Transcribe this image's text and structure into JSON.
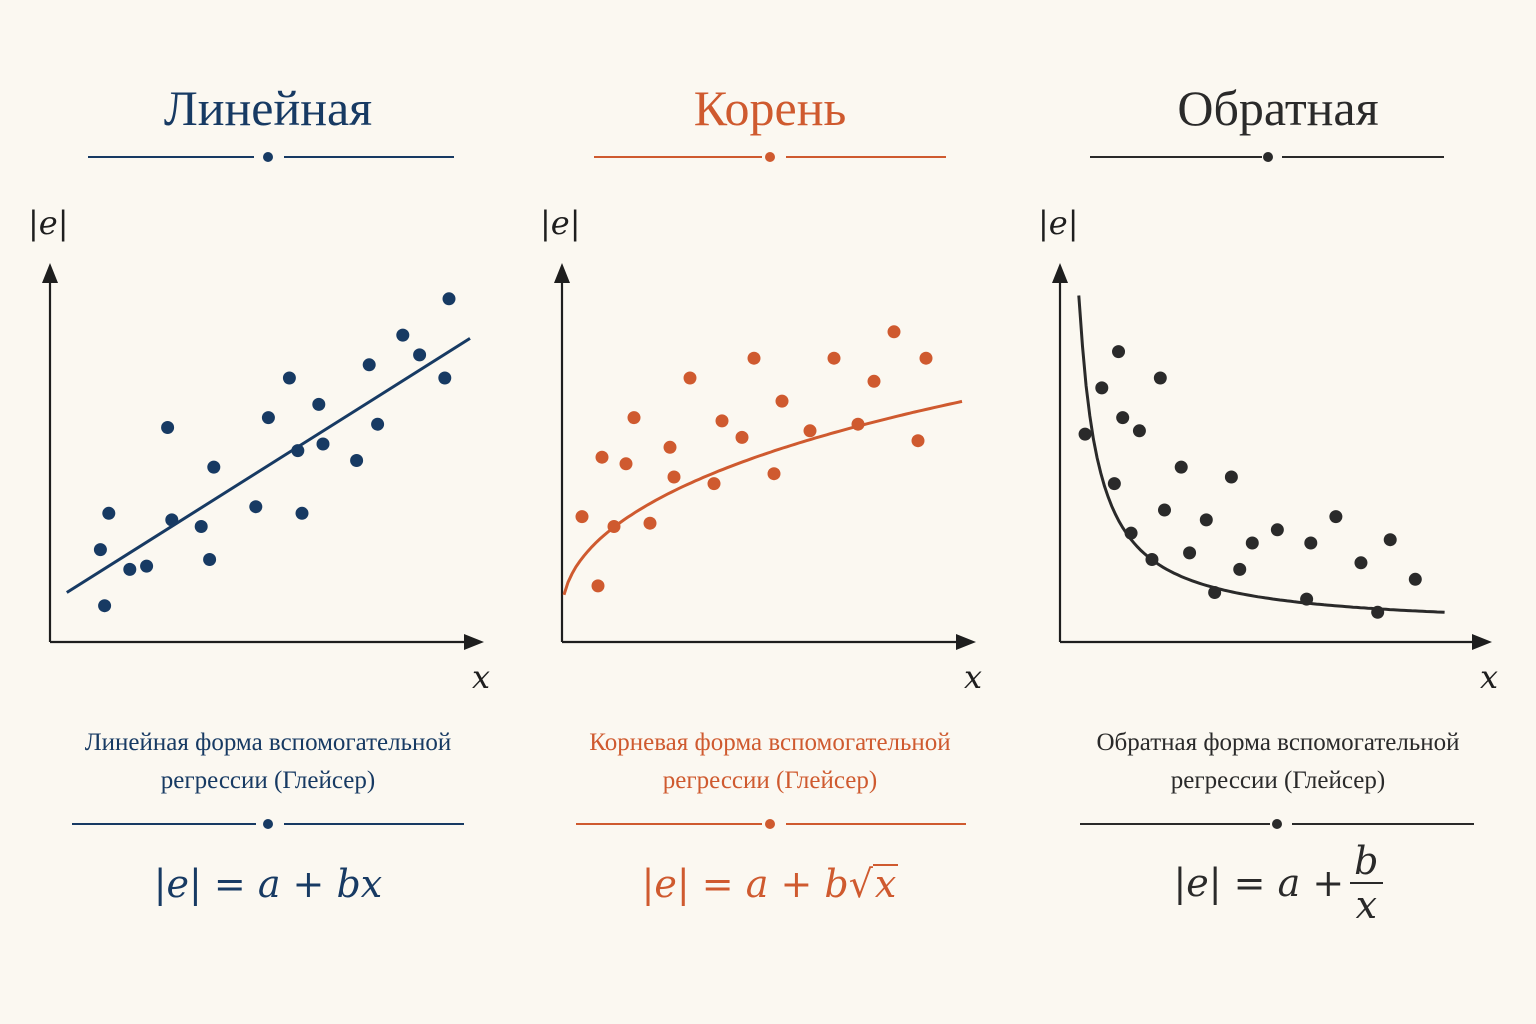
{
  "colors": {
    "linear": "#173a63",
    "root": "#cf5a2f",
    "inverse": "#2a2a2a",
    "axis": "#1e1e1e",
    "background": "#fbf8f1"
  },
  "panels": [
    {
      "title": "Линейная",
      "caption_line1": "Линейная форма вспомогательной",
      "caption_line2": "регрессии (Глейсер)",
      "formula_lhs": "|e| = a + bx",
      "y_label": "|e|",
      "x_label": "x"
    },
    {
      "title": "Корень",
      "caption_line1": "Корневая форма вспомогательной",
      "caption_line2": "регрессии (Глейсер)",
      "formula_lhs": "|e| = a + b",
      "formula_radicand": "x",
      "y_label": "|e|",
      "x_label": "x"
    },
    {
      "title": "Обратная",
      "caption_line1": "Обратная форма вспомогательной",
      "caption_line2": "регрессии (Глейсер)",
      "formula_lhs": "|e| = a +",
      "formula_num": "b",
      "formula_den": "x",
      "y_label": "|e|",
      "x_label": "x"
    }
  ],
  "chart_data": [
    {
      "type": "scatter",
      "title": "Линейная",
      "xlabel": "x",
      "ylabel": "|e|",
      "xlim": [
        0,
        10
      ],
      "ylim": [
        0,
        10
      ],
      "grid": false,
      "fit": "linear",
      "x": [
        1.2,
        1.3,
        1.4,
        1.9,
        2.3,
        2.8,
        2.9,
        3.6,
        3.8,
        3.9,
        4.9,
        5.2,
        5.7,
        5.9,
        6.0,
        6.4,
        6.5,
        7.3,
        7.6,
        7.8,
        8.4,
        8.8,
        9.4,
        9.5
      ],
      "y": [
        2.8,
        1.1,
        3.9,
        2.2,
        2.3,
        6.5,
        3.7,
        3.5,
        2.5,
        5.3,
        4.1,
        6.8,
        8.0,
        5.8,
        3.9,
        7.2,
        6.0,
        5.5,
        8.4,
        6.6,
        9.3,
        8.7,
        8.0,
        10.4
      ],
      "fit_line": {
        "x": [
          0.4,
          10.0
        ],
        "y": [
          1.5,
          9.2
        ]
      }
    },
    {
      "type": "scatter",
      "title": "Корень",
      "xlabel": "x",
      "ylabel": "|e|",
      "xlim": [
        0,
        10
      ],
      "ylim": [
        0,
        10
      ],
      "grid": false,
      "fit": "sqrt",
      "x": [
        0.5,
        0.9,
        1.0,
        1.3,
        1.6,
        1.8,
        2.2,
        2.7,
        2.8,
        3.2,
        3.8,
        4.0,
        4.5,
        4.8,
        5.3,
        5.5,
        6.2,
        6.8,
        7.4,
        7.8,
        8.3,
        8.9,
        9.1
      ],
      "y": [
        3.8,
        1.7,
        5.6,
        3.5,
        5.4,
        6.8,
        3.6,
        5.9,
        5.0,
        8.0,
        4.8,
        6.7,
        6.2,
        8.6,
        5.1,
        7.3,
        6.4,
        8.6,
        6.6,
        7.9,
        9.4,
        6.1,
        8.6
      ],
      "fit_line": "y = 0.9 + 2.4·√x"
    },
    {
      "type": "scatter",
      "title": "Обратная",
      "xlabel": "x",
      "ylabel": "|e|",
      "xlim": [
        0,
        10
      ],
      "ylim": [
        0,
        10
      ],
      "grid": false,
      "fit": "inverse",
      "x": [
        0.6,
        1.0,
        1.3,
        1.4,
        1.5,
        1.7,
        1.9,
        2.2,
        2.4,
        2.5,
        2.9,
        3.1,
        3.5,
        3.7,
        4.1,
        4.3,
        4.6,
        5.2,
        5.9,
        6.0,
        6.6,
        7.2,
        7.6,
        7.9,
        8.5
      ],
      "y": [
        6.3,
        7.7,
        4.8,
        8.8,
        6.8,
        3.3,
        6.4,
        2.5,
        8.0,
        4.0,
        5.3,
        2.7,
        3.7,
        1.5,
        5.0,
        2.2,
        3.0,
        3.4,
        1.3,
        3.0,
        3.8,
        2.4,
        0.9,
        3.1,
        1.9
      ],
      "fit_line": "y = 0.4 + 4.6/x"
    }
  ]
}
